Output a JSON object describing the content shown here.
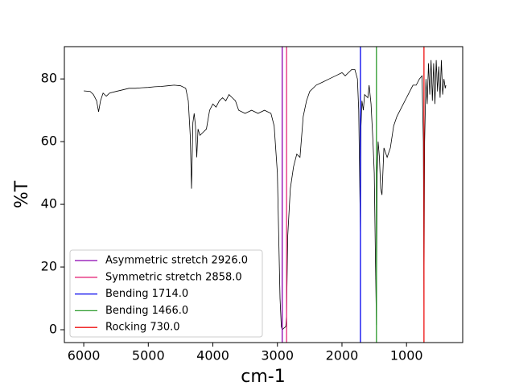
{
  "chart_data": {
    "type": "line",
    "xlabel": "cm-1",
    "ylabel": "%T",
    "xlim": [
      6300,
      130
    ],
    "ylim": [
      -4.1,
      90.3
    ],
    "xticks": [
      6000,
      5000,
      4000,
      3000,
      2000,
      1000
    ],
    "yticks": [
      0,
      20,
      40,
      60,
      80
    ],
    "series": [
      {
        "color": "#000000",
        "x": [
          6000,
          5900,
          5850,
          5800,
          5770,
          5740,
          5700,
          5650,
          5600,
          5500,
          5400,
          5300,
          5200,
          5100,
          5000,
          4900,
          4800,
          4700,
          4600,
          4500,
          4420,
          4380,
          4350,
          4330,
          4310,
          4290,
          4270,
          4250,
          4230,
          4200,
          4150,
          4100,
          4050,
          4000,
          3950,
          3900,
          3850,
          3800,
          3750,
          3700,
          3650,
          3600,
          3500,
          3400,
          3300,
          3200,
          3100,
          3050,
          3000,
          2960,
          2940,
          2926,
          2900,
          2870,
          2858,
          2840,
          2800,
          2750,
          2700,
          2650,
          2600,
          2550,
          2500,
          2400,
          2300,
          2200,
          2100,
          2000,
          1950,
          1900,
          1850,
          1800,
          1760,
          1740,
          1720,
          1714,
          1705,
          1690,
          1670,
          1650,
          1600,
          1580,
          1550,
          1520,
          1500,
          1480,
          1466,
          1455,
          1440,
          1420,
          1400,
          1380,
          1350,
          1300,
          1250,
          1200,
          1150,
          1100,
          1050,
          1000,
          950,
          900,
          850,
          800,
          760,
          740,
          730,
          720,
          700,
          680,
          660,
          640,
          620,
          600,
          580,
          560,
          540,
          520,
          500,
          480,
          460,
          440,
          420,
          400,
          390
        ],
        "values": [
          76.2,
          76,
          75,
          73,
          69.5,
          73,
          75.5,
          74.5,
          75.5,
          76,
          76.5,
          77,
          77,
          77.2,
          77.3,
          77.5,
          77.6,
          77.8,
          78,
          77.8,
          77,
          73,
          62,
          45,
          66,
          69,
          65,
          55,
          64,
          62,
          63,
          64,
          70,
          72,
          71,
          73,
          74,
          73,
          75,
          74,
          73,
          70,
          69,
          70,
          69,
          70,
          69,
          65,
          50,
          10,
          1,
          0,
          0.5,
          1,
          5,
          30,
          45,
          52,
          56,
          55,
          68,
          73,
          76,
          78,
          79,
          80,
          81,
          82,
          81,
          82,
          83,
          83,
          80,
          70,
          40,
          31,
          65,
          73,
          70,
          75,
          74,
          78,
          72,
          60,
          50,
          20,
          1.5,
          50,
          60,
          55,
          45,
          43,
          58,
          55,
          58,
          65,
          68,
          70,
          72,
          74,
          76,
          78,
          78,
          80,
          81,
          60,
          7,
          60,
          80,
          72,
          85,
          75,
          86,
          73,
          85,
          72,
          86,
          76,
          84,
          74,
          86,
          75,
          80,
          77,
          78
        ]
      }
    ],
    "vlines": [
      {
        "label": "Asymmetric stretch 2926.0",
        "x": 2926,
        "color": "#8b00b0"
      },
      {
        "label": "Symmetric stretch 2858.0",
        "x": 2858,
        "color": "#e6287a"
      },
      {
        "label": "Bending 1714.0",
        "x": 1714,
        "color": "#0000ee"
      },
      {
        "label": "Bending 1466.0",
        "x": 1466,
        "color": "#2a9a2a"
      },
      {
        "label": "Rocking 730.0",
        "x": 730,
        "color": "#ee1111"
      }
    ]
  }
}
